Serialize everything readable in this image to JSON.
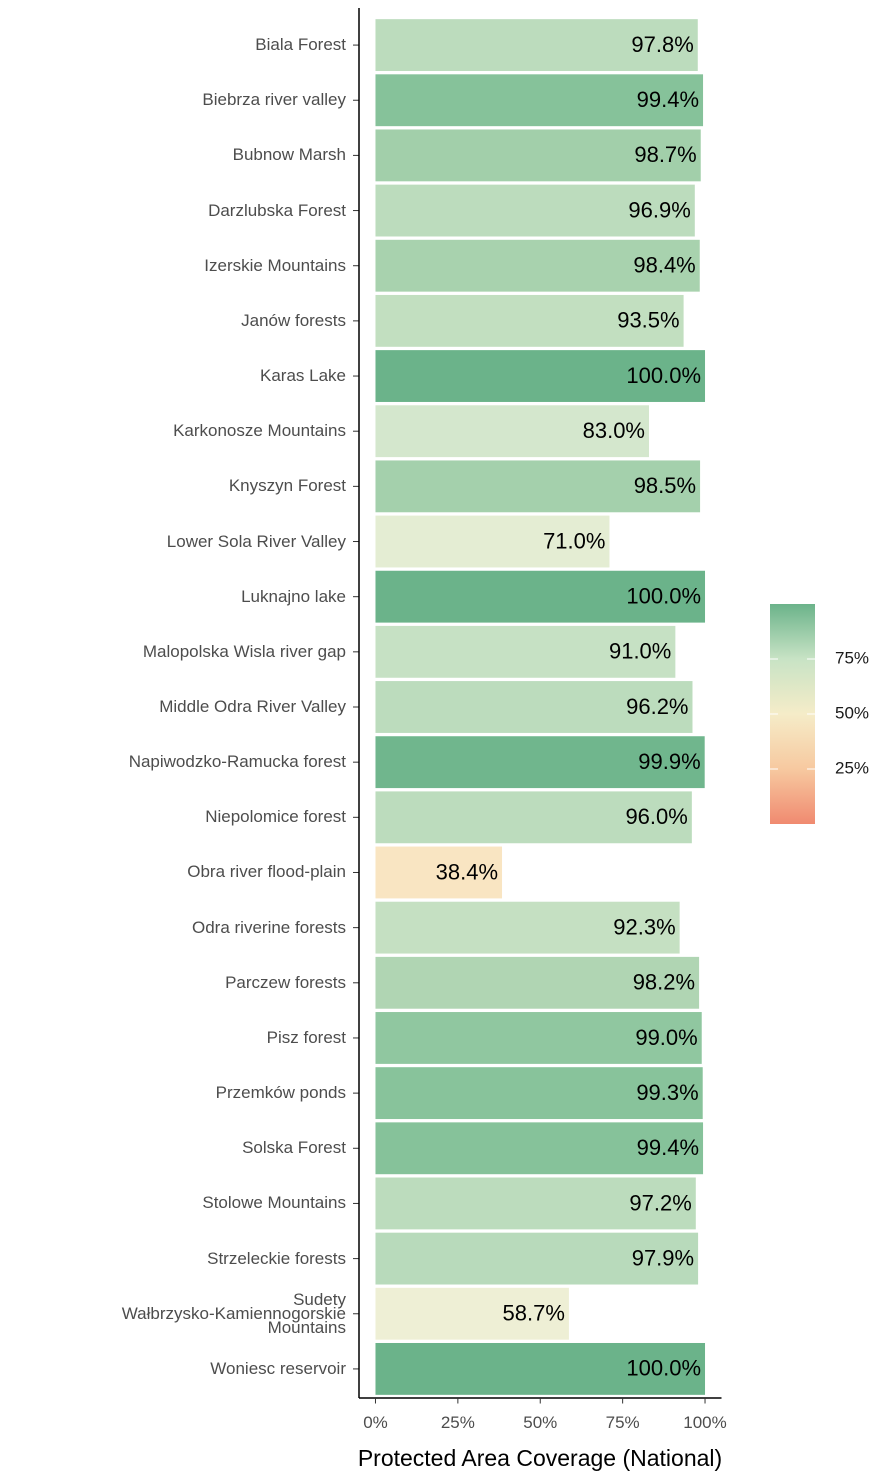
{
  "chart_data": {
    "type": "bar",
    "orientation": "horizontal",
    "x_label": "Protected Area Coverage (National)",
    "categories": [
      "Biala Forest",
      "Biebrza river valley",
      "Bubnow Marsh",
      "Darzlubska Forest",
      "Izerskie Mountains",
      "Janów forests",
      "Karas Lake",
      "Karkonosze Mountains",
      "Knyszyn Forest",
      "Lower Sola River Valley",
      "Luknajno lake",
      "Malopolska Wisla river gap",
      "Middle Odra River Valley",
      "Napiwodzko-Ramucka forest",
      "Niepolomice forest",
      "Obra river flood-plain",
      "Odra riverine forests",
      "Parczew forests",
      "Pisz forest",
      "Przemków ponds",
      "Solska Forest",
      "Stolowe Mountains",
      "Strzeleckie forests",
      "Sudety\nWałbrzysko-Kamiennogorskie\nMountains",
      "Woniesc reservoir"
    ],
    "values": [
      97.8,
      99.4,
      98.7,
      96.9,
      98.4,
      93.5,
      100,
      83,
      98.5,
      71,
      100,
      91,
      96.2,
      99.9,
      96,
      38.4,
      92.3,
      98.2,
      99,
      99.3,
      99.4,
      97.2,
      97.9,
      58.7,
      100
    ],
    "value_labels": [
      "97.8%",
      "99.4%",
      "98.7%",
      "96.9%",
      "98.4%",
      "93.5%",
      "100.0%",
      "83.0%",
      "98.5%",
      "71.0%",
      "100.0%",
      "91.0%",
      "96.2%",
      "99.9%",
      "96.0%",
      "38.4%",
      "92.3%",
      "98.2%",
      "99.0%",
      "99.3%",
      "99.4%",
      "97.2%",
      "97.9%",
      "58.7%",
      "100.0%"
    ],
    "colors": [
      "#bcdcbd",
      "#86c29a",
      "#a2cfaa",
      "#bcdcbd",
      "#a8d2ae",
      "#c2dfc0",
      "#6bb38a",
      "#d4e7cd",
      "#a4d0ac",
      "#e4edd3",
      "#6bb38a",
      "#c6e1c4",
      "#bcdcbd",
      "#70b68d",
      "#bcdcbd",
      "#f9e5c2",
      "#c5e0c2",
      "#b0d5b3",
      "#90c7a0",
      "#88c39b",
      "#86c29a",
      "#bcdcbd",
      "#b8dabb",
      "#eeefd5",
      "#6bb38a"
    ],
    "xlim": [
      -5,
      105
    ],
    "xticks": [
      {
        "value": 0,
        "label": "0%"
      },
      {
        "value": 25,
        "label": "25%"
      },
      {
        "value": 50,
        "label": "50%"
      },
      {
        "value": 75,
        "label": "75%"
      },
      {
        "value": 100,
        "label": "100%"
      }
    ],
    "colorbar": {
      "lim": [
        0,
        100
      ],
      "ticks": [
        {
          "value": 25,
          "label": "25%"
        },
        {
          "value": 50,
          "label": "50%"
        },
        {
          "value": 75,
          "label": "75%"
        }
      ],
      "stops": [
        "#f08a70",
        "#f7c9a0",
        "#f5ecc8",
        "#c8e3c5",
        "#6bb38a"
      ]
    }
  }
}
